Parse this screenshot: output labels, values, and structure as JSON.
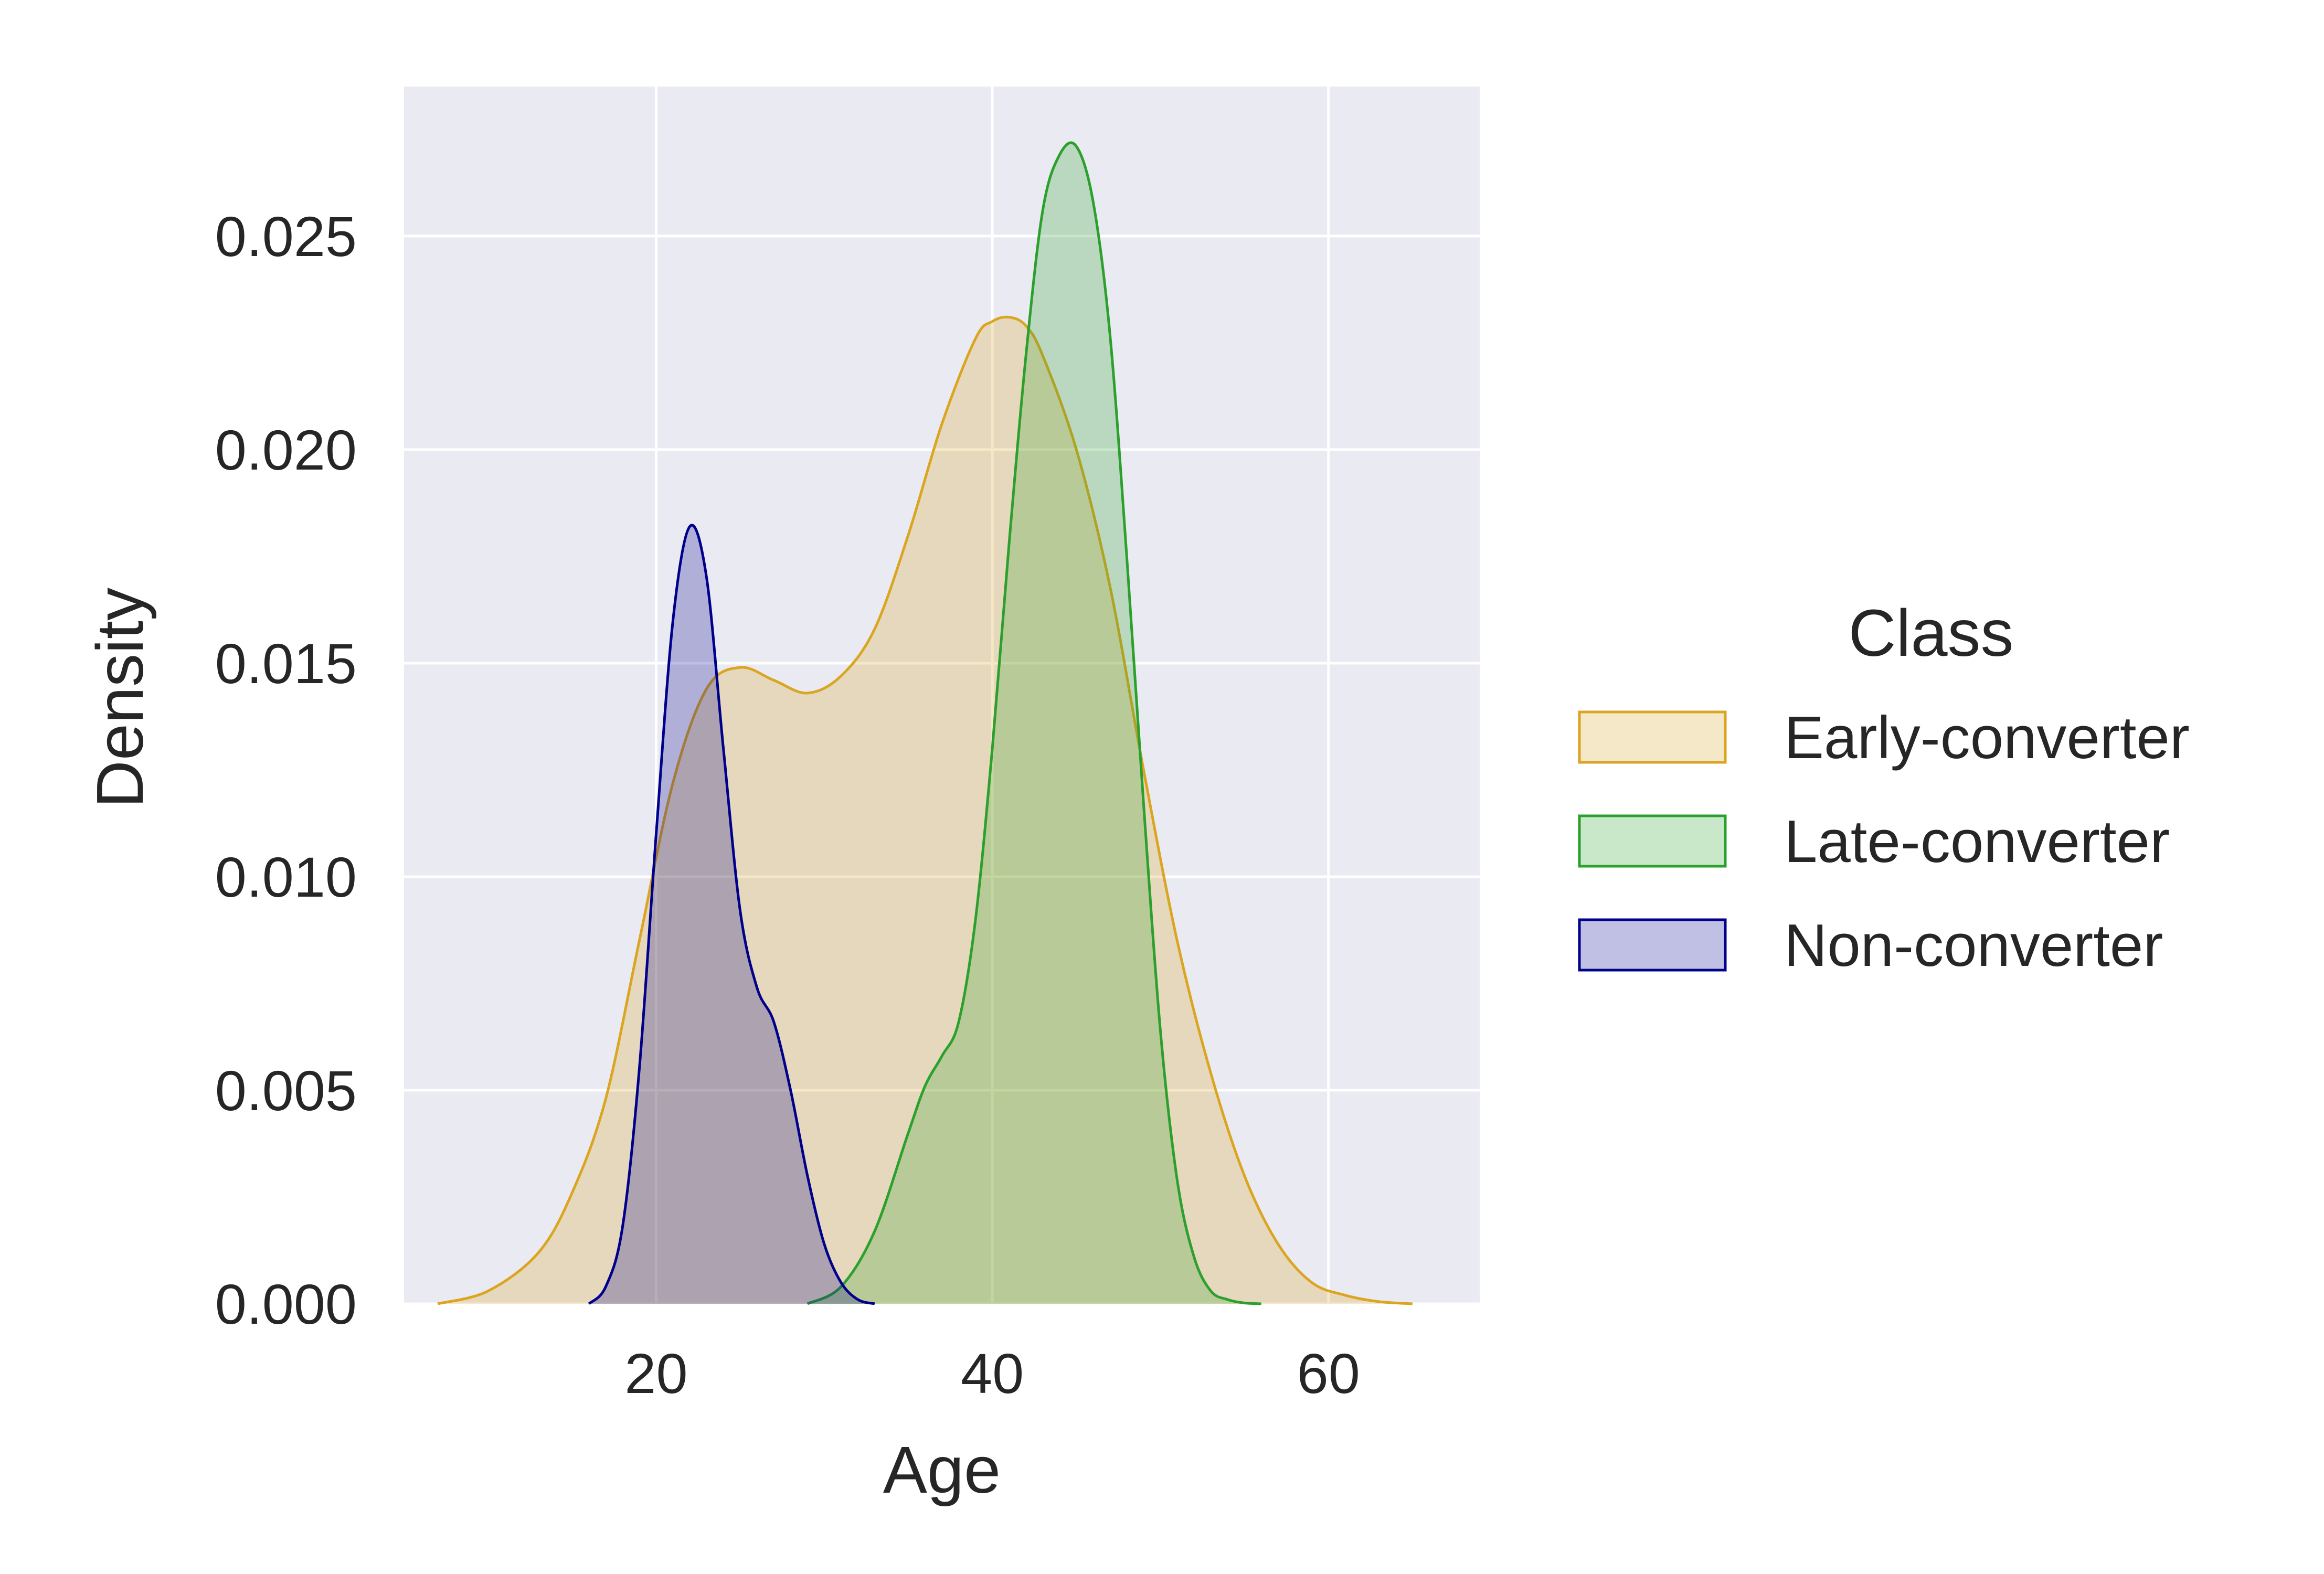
{
  "chart_data": {
    "type": "area",
    "title": "",
    "xlabel": "Age",
    "ylabel": "Density",
    "xlim": [
      5,
      69
    ],
    "ylim": [
      0,
      0.0285
    ],
    "xticks": [
      20,
      40,
      60
    ],
    "yticks": [
      0.0,
      0.005,
      0.01,
      0.015,
      0.02,
      0.025
    ],
    "ytick_labels": [
      "0.000",
      "0.005",
      "0.010",
      "0.015",
      "0.020",
      "0.025"
    ],
    "xtick_labels": [
      "20",
      "40",
      "60"
    ],
    "grid": true,
    "background": "#eaeaf2",
    "legend": {
      "title": "Class",
      "placement": "right"
    },
    "series": [
      {
        "name": "Early-converter",
        "color": "#daa520",
        "fill": "#f5e8c8",
        "fill_opacity": 0.25,
        "x": [
          7,
          10,
          13,
          15,
          17,
          19,
          21,
          23,
          25,
          27,
          29,
          31,
          33,
          35,
          37,
          39,
          40,
          41,
          42,
          43,
          45,
          47,
          49,
          51,
          53,
          55,
          57,
          59,
          61,
          63,
          65
        ],
        "y": [
          0.0,
          0.0003,
          0.0012,
          0.0026,
          0.0048,
          0.0085,
          0.0122,
          0.0144,
          0.0149,
          0.0146,
          0.0143,
          0.0147,
          0.0158,
          0.018,
          0.0206,
          0.0226,
          0.023,
          0.0231,
          0.0229,
          0.0222,
          0.02,
          0.0168,
          0.0125,
          0.0085,
          0.0054,
          0.003,
          0.0014,
          0.0005,
          0.0002,
          5e-05,
          0.0
        ]
      },
      {
        "name": "Late-converter",
        "color": "#2ca02c",
        "fill": "#c9e8c9",
        "fill_opacity": 0.25,
        "x": [
          29,
          31,
          33,
          35,
          36,
          37,
          38,
          39,
          40,
          41,
          42,
          43,
          44,
          45,
          46,
          47,
          48,
          49,
          50,
          51,
          52,
          53,
          54,
          55,
          56
        ],
        "y": [
          0.0,
          0.0004,
          0.0017,
          0.004,
          0.0051,
          0.0058,
          0.0066,
          0.009,
          0.013,
          0.0178,
          0.0222,
          0.0256,
          0.0269,
          0.0271,
          0.0258,
          0.0227,
          0.0175,
          0.0117,
          0.0064,
          0.0029,
          0.0011,
          0.0003,
          0.0001,
          2e-05,
          0.0
        ]
      },
      {
        "name": "Non-converter",
        "color": "#00008b",
        "fill": "#c0c0e4",
        "fill_opacity": 0.25,
        "x": [
          16,
          17,
          18,
          19,
          20,
          21,
          22,
          23,
          24,
          25,
          26,
          27,
          28,
          29,
          30,
          31,
          32,
          33
        ],
        "y": [
          0.0,
          0.0004,
          0.0018,
          0.0055,
          0.011,
          0.016,
          0.0182,
          0.017,
          0.013,
          0.0092,
          0.0074,
          0.0066,
          0.005,
          0.003,
          0.0014,
          0.0005,
          0.0001,
          0.0
        ]
      }
    ]
  }
}
